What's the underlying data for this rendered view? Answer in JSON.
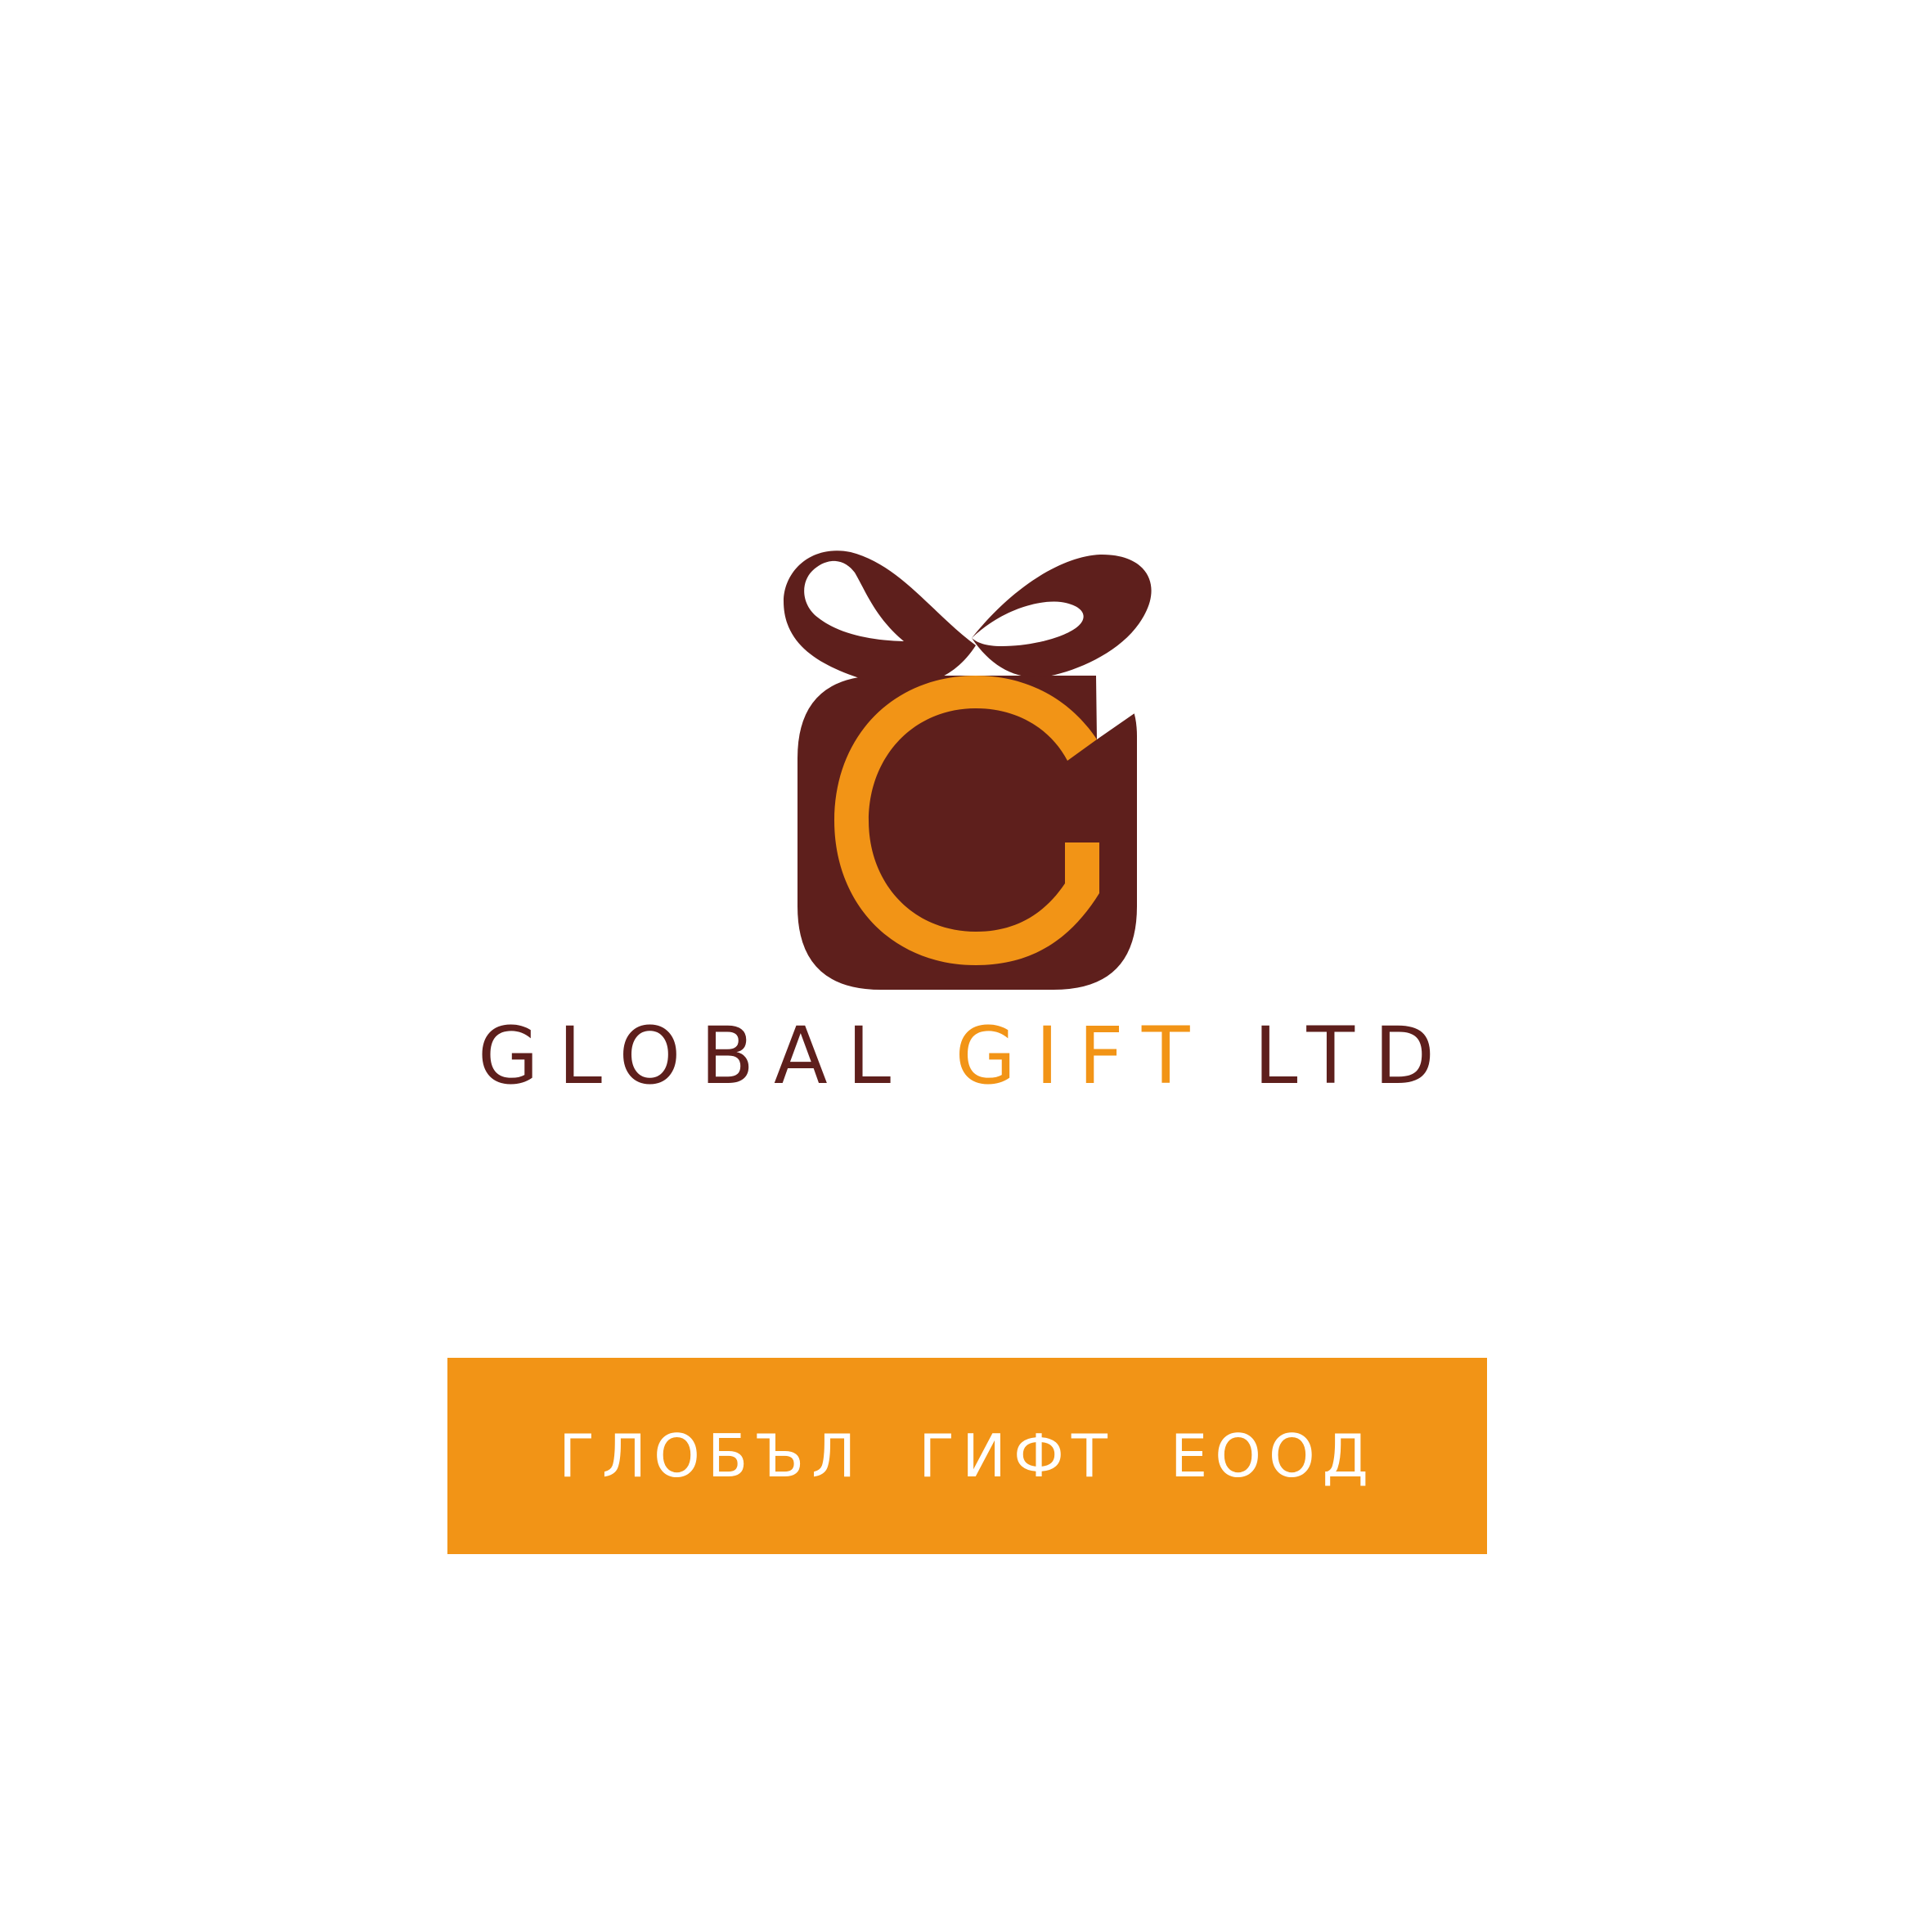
{
  "colors": {
    "brown": "#5e1f1c",
    "orange": "#f29416",
    "white": "#ffffff",
    "background": "#ffffff"
  },
  "logo": {
    "icon": "gift-box-g-icon",
    "wordmark_part1": "GLOBAL ",
    "wordmark_part2": "GIFT",
    "wordmark_part3": " LTD"
  },
  "banner": {
    "text": "ГЛОБЪЛ ГИФТ ЕООД"
  }
}
